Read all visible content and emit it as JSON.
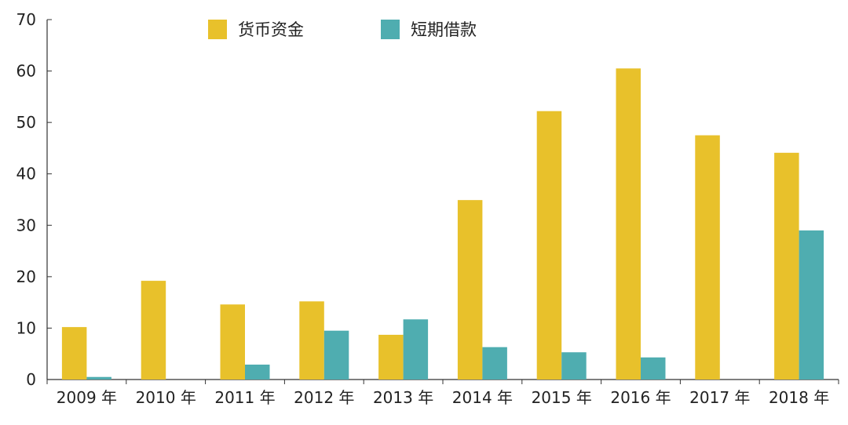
{
  "chart_data": {
    "type": "bar",
    "categories": [
      "2009 年",
      "2010 年",
      "2011 年",
      "2012 年",
      "2013 年",
      "2014 年",
      "2015 年",
      "2016 年",
      "2017 年",
      "2018 年"
    ],
    "series": [
      {
        "name": "货币资金",
        "color": "#E8C12B",
        "values": [
          10.2,
          19.2,
          14.6,
          15.2,
          8.7,
          34.9,
          52.2,
          60.5,
          47.5,
          44.1
        ]
      },
      {
        "name": "短期借款",
        "color": "#4FADB0",
        "values": [
          0.5,
          0,
          2.9,
          9.5,
          11.7,
          6.3,
          5.3,
          4.3,
          0,
          29.0
        ]
      }
    ],
    "ylim": [
      0,
      70
    ],
    "yticks": [
      0,
      10,
      20,
      30,
      40,
      50,
      60,
      70
    ],
    "grid": false,
    "legend_position": "top-center",
    "title": "",
    "xlabel": "",
    "ylabel": ""
  }
}
